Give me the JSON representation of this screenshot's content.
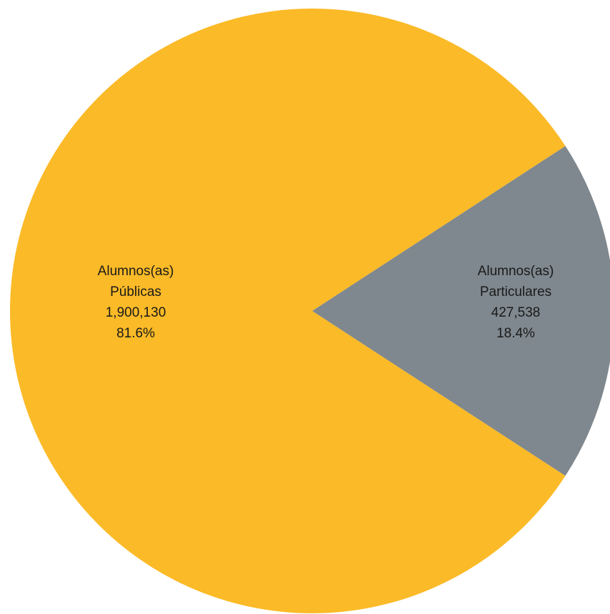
{
  "chart_data": {
    "type": "pie",
    "title": "",
    "series": [
      {
        "slices": [
          {
            "label_lines": [
              "Alumnos(as)",
              "Públicas"
            ],
            "value": 1900130,
            "value_label": "1,900,130",
            "percent_label": "81.6%",
            "color": "#FBBA27"
          },
          {
            "label_lines": [
              "Alumnos(as)",
              "Particulares"
            ],
            "value": 427538,
            "value_label": "427,538",
            "percent_label": "18.4%",
            "color": "#7F888E"
          }
        ]
      }
    ],
    "legend": "none",
    "grid": false
  }
}
